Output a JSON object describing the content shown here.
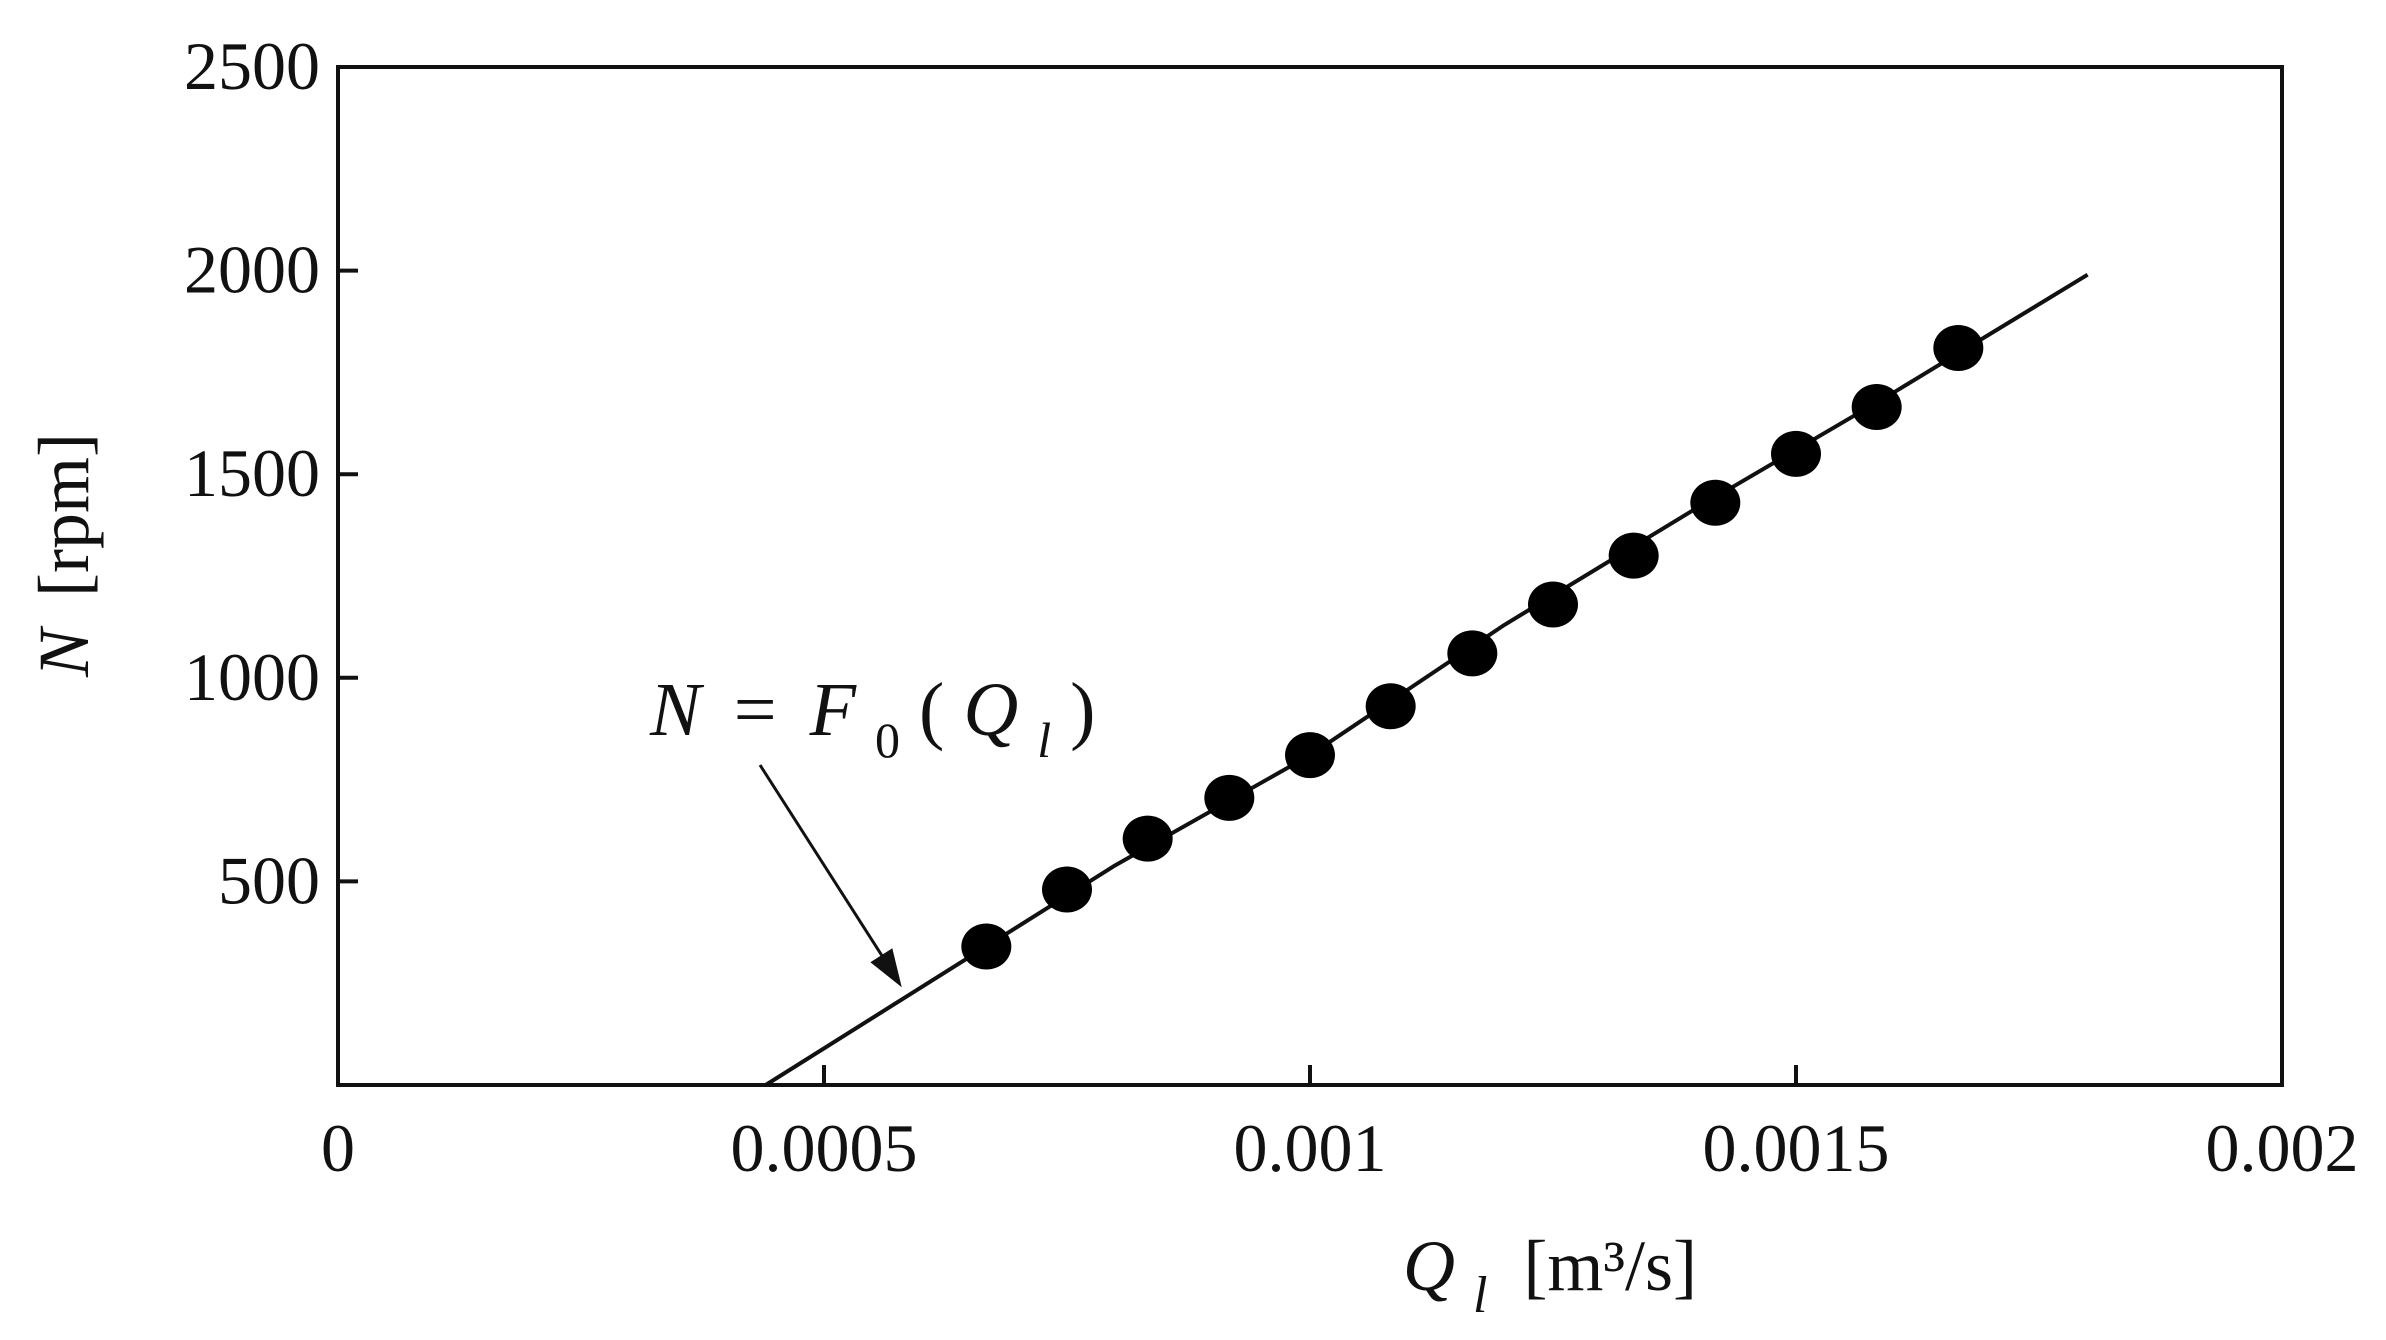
{
  "chart_data": {
    "type": "scatter",
    "xlabel": {
      "symbol": "Q",
      "subscript": "l",
      "unit": "[m³/s]"
    },
    "ylabel": {
      "symbol": "N",
      "unit": "[rpm]"
    },
    "xlim": [
      0,
      0.002
    ],
    "ylim": [
      0,
      2500
    ],
    "x_ticks": [
      0,
      0.0005,
      0.001,
      0.0015,
      0.002
    ],
    "x_tick_labels": [
      "0",
      "0.0005",
      "0.001",
      "0.0015",
      "0.002"
    ],
    "y_ticks": [
      500,
      1000,
      1500,
      2000,
      2500
    ],
    "y_tick_labels": [
      "500",
      "1000",
      "1500",
      "2000",
      "2500"
    ],
    "grid": false,
    "series": [
      {
        "kind": "points",
        "x": [
          0.000667,
          0.00075,
          0.000833,
          0.000917,
          0.001,
          0.001083,
          0.001167,
          0.00125,
          0.001333,
          0.001417,
          0.0015,
          0.001583,
          0.001667
        ],
        "y": [
          340,
          480,
          605,
          705,
          810,
          930,
          1060,
          1180,
          1300,
          1430,
          1550,
          1665,
          1810
        ]
      },
      {
        "kind": "line",
        "x": [
          0.00044,
          0.0006,
          0.0008,
          0.001,
          0.0012,
          0.0014,
          0.0016,
          0.0018
        ],
        "y": [
          0,
          240,
          540,
          810,
          1130,
          1420,
          1700,
          1990
        ]
      }
    ],
    "annotation": {
      "lhs": "N",
      "eq": "=",
      "fn": "F",
      "fn_sub": "0",
      "arg": "Q",
      "arg_sub": "l",
      "arrow_to": [
        0.00058,
        240
      ]
    }
  }
}
